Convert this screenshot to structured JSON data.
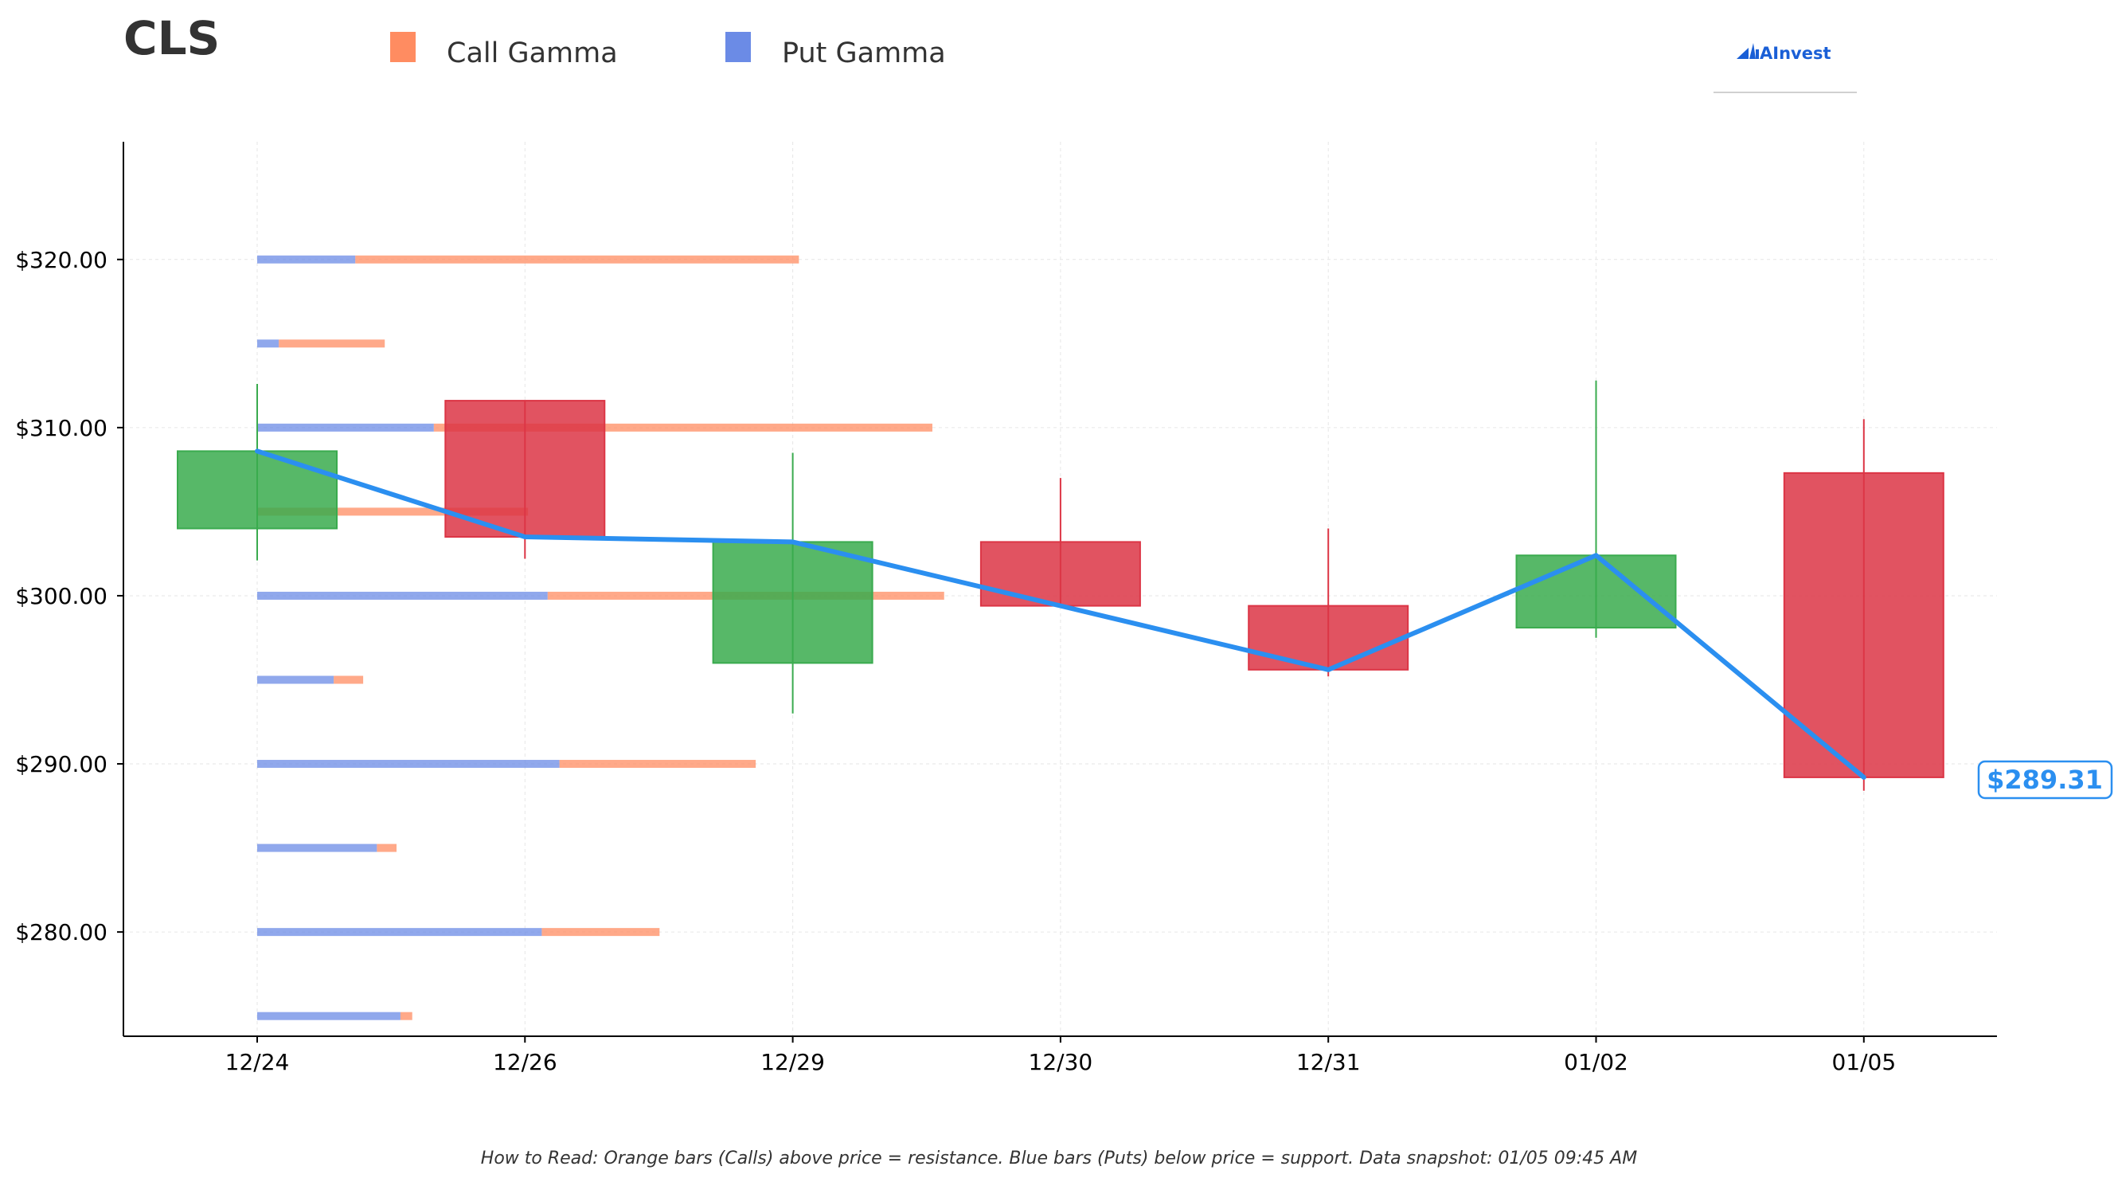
{
  "chart_data": {
    "type": "candlestick",
    "title": "CLS",
    "legend": [
      {
        "name": "Call Gamma",
        "color": "#ff8c61"
      },
      {
        "name": "Put Gamma",
        "color": "#6b8be6"
      }
    ],
    "categories": [
      "12/24",
      "12/26",
      "12/29",
      "12/30",
      "12/31",
      "01/02",
      "01/05"
    ],
    "ohlc": [
      {
        "open": 304.0,
        "high": 312.6,
        "low": 302.1,
        "close": 308.6
      },
      {
        "open": 311.6,
        "high": 311.6,
        "low": 302.2,
        "close": 303.5
      },
      {
        "open": 296.0,
        "high": 308.5,
        "low": 293.0,
        "close": 303.2
      },
      {
        "open": 303.2,
        "high": 307.0,
        "low": 299.3,
        "close": 299.4
      },
      {
        "open": 299.4,
        "high": 304.0,
        "low": 295.2,
        "close": 295.6
      },
      {
        "open": 298.1,
        "high": 312.8,
        "low": 297.5,
        "close": 302.4
      },
      {
        "open": 307.3,
        "high": 310.5,
        "low": 288.4,
        "close": 289.2
      }
    ],
    "price_line": [
      308.6,
      303.5,
      303.2,
      299.4,
      295.6,
      302.4,
      289.2
    ],
    "gamma_levels": [
      {
        "strike": 320,
        "put": 2.5,
        "call": 11.3
      },
      {
        "strike": 315,
        "put": 0.55,
        "call": 2.7
      },
      {
        "strike": 310,
        "put": 4.5,
        "call": 12.7
      },
      {
        "strike": 305,
        "put": 0.0,
        "call": 6.9
      },
      {
        "strike": 300,
        "put": 7.4,
        "call": 10.1
      },
      {
        "strike": 295,
        "put": 1.95,
        "call": 0.75
      },
      {
        "strike": 290,
        "put": 7.7,
        "call": 5.0
      },
      {
        "strike": 285,
        "put": 3.05,
        "call": 0.5
      },
      {
        "strike": 280,
        "put": 7.25,
        "call": 3.0
      },
      {
        "strike": 275,
        "put": 3.65,
        "call": 0.3
      }
    ],
    "ylim": [
      273.8,
      327.0
    ],
    "yticks": [
      280,
      290,
      300,
      310,
      320
    ],
    "ytick_labels": [
      "$280.00",
      "$290.00",
      "$300.00",
      "$310.00",
      "$320.00"
    ],
    "current_price_label": "$289.31",
    "colors": {
      "up": "#3aab4e",
      "down": "#dc3545",
      "price_line": "#2b8ff0",
      "call": "#ff8c61",
      "put": "#6b8be6"
    },
    "grid": true
  },
  "logo": {
    "text": "AInvest",
    "color": "#1a5fd6"
  },
  "footnote": "How to Read: Orange bars (Calls) above price = resistance. Blue bars (Puts) below price = support. Data snapshot: 01/05 09:45 AM"
}
